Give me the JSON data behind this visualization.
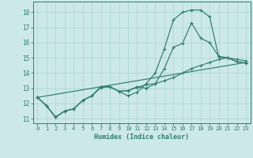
{
  "background_color": "#cde8e8",
  "grid_color": "#b0d8d8",
  "line_color": "#2e7d6e",
  "xlabel": "Humidex (Indice chaleur)",
  "xlim": [
    -0.5,
    23.5
  ],
  "ylim": [
    10.7,
    18.7
  ],
  "yticks": [
    11,
    12,
    13,
    14,
    15,
    16,
    17,
    18
  ],
  "xticks": [
    0,
    1,
    2,
    3,
    4,
    5,
    6,
    7,
    8,
    9,
    10,
    11,
    12,
    13,
    14,
    15,
    16,
    17,
    18,
    19,
    20,
    21,
    22,
    23
  ],
  "lines": [
    {
      "x": [
        0,
        1,
        2,
        3,
        4,
        5,
        6,
        7,
        8,
        9,
        10,
        11,
        12,
        13,
        14,
        15,
        16,
        17,
        18,
        19,
        20,
        21,
        22,
        23
      ],
      "y": [
        12.4,
        11.85,
        11.1,
        11.5,
        11.65,
        12.2,
        12.5,
        13.1,
        13.1,
        12.8,
        12.5,
        12.75,
        13.3,
        14.0,
        15.6,
        17.5,
        18.0,
        18.15,
        18.15,
        17.7,
        15.05,
        15.0,
        14.75,
        14.65
      ]
    },
    {
      "x": [
        0,
        1,
        2,
        3,
        4,
        5,
        6,
        7,
        8,
        9,
        10,
        11,
        12,
        13,
        14,
        15,
        16,
        17,
        18,
        19,
        20,
        21,
        22,
        23
      ],
      "y": [
        12.4,
        11.85,
        11.1,
        11.5,
        11.65,
        12.2,
        12.5,
        13.1,
        13.1,
        12.8,
        12.85,
        13.1,
        13.0,
        13.3,
        14.3,
        15.7,
        15.95,
        17.3,
        16.3,
        16.0,
        15.1,
        15.0,
        14.75,
        14.65
      ]
    },
    {
      "x": [
        0,
        23
      ],
      "y": [
        12.4,
        14.7
      ]
    },
    {
      "x": [
        0,
        1,
        2,
        3,
        4,
        5,
        6,
        7,
        8,
        9,
        10,
        11,
        12,
        13,
        14,
        15,
        16,
        17,
        18,
        19,
        20,
        21,
        22,
        23
      ],
      "y": [
        12.4,
        11.85,
        11.1,
        11.5,
        11.65,
        12.2,
        12.5,
        13.05,
        13.1,
        12.8,
        12.85,
        13.05,
        13.25,
        13.3,
        13.5,
        13.7,
        14.0,
        14.3,
        14.5,
        14.7,
        14.9,
        15.0,
        14.9,
        14.8
      ]
    }
  ]
}
